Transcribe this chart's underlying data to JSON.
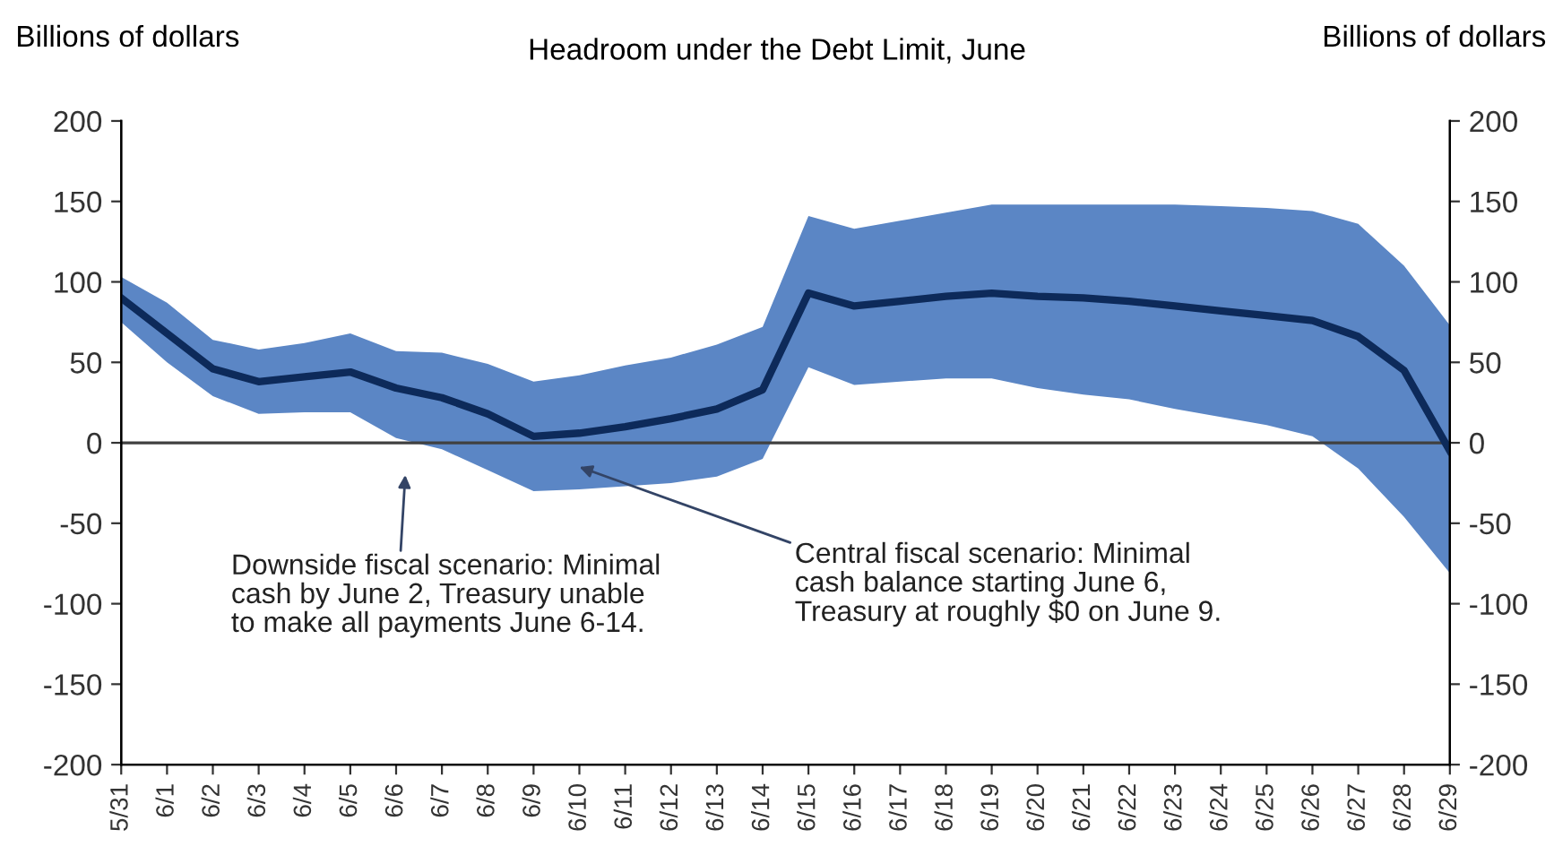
{
  "chart_data": {
    "type": "line",
    "title": "Headroom under the Debt Limit, June",
    "ylabel": "Billions of dollars",
    "y2label": "Billions of dollars",
    "categories": [
      "5/31",
      "6/1",
      "6/2",
      "6/3",
      "6/4",
      "6/5",
      "6/6",
      "6/7",
      "6/8",
      "6/9",
      "6/10",
      "6/11",
      "6/12",
      "6/13",
      "6/14",
      "6/15",
      "6/16",
      "6/17",
      "6/18",
      "6/19",
      "6/20",
      "6/21",
      "6/22",
      "6/23",
      "6/24",
      "6/25",
      "6/26",
      "6/27",
      "6/28",
      "6/29"
    ],
    "series": [
      {
        "color": "#0d2a5a",
        "values": [
          90,
          68,
          46,
          38,
          41,
          44,
          34,
          28,
          18,
          4,
          6,
          10,
          15,
          21,
          33,
          93,
          85,
          88,
          91,
          93,
          91,
          90,
          88,
          85,
          82,
          79,
          76,
          66,
          45,
          -5
        ],
        "lower": [
          75,
          50,
          29,
          18,
          19,
          19,
          3,
          -4,
          -17,
          -30,
          -29,
          -27,
          -25,
          -21,
          -10,
          47,
          36,
          38,
          40,
          40,
          34,
          30,
          27,
          21,
          16,
          11,
          4,
          -16,
          -46,
          -81
        ],
        "upper": [
          103,
          87,
          64,
          58,
          62,
          68,
          57,
          56,
          49,
          38,
          42,
          48,
          53,
          61,
          72,
          141,
          133,
          138,
          143,
          148,
          148,
          148,
          148,
          148,
          147,
          146,
          144,
          136,
          110,
          73
        ]
      }
    ],
    "ylim": [
      -200,
      200
    ],
    "yticks": [
      -200,
      -150,
      -100,
      -50,
      0,
      50,
      100,
      150,
      200
    ],
    "y2lim": [
      -200,
      200
    ],
    "y2ticks": [
      -200,
      -150,
      -100,
      -50,
      0,
      50,
      100,
      150,
      200
    ],
    "ref_lines": [
      {
        "axis": "y",
        "value": 0,
        "color": "#404040"
      }
    ],
    "grid": false,
    "legend": false,
    "line_style": "solid",
    "marker": "none",
    "annotations": [
      "Downside fiscal scenario: Minimal\ncash by June 2, Treasury unable\nto make all payments June 6-14.",
      "Central fiscal scenario: Minimal\ncash balance starting June 6,\nTreasury at roughly $0 on June 9."
    ]
  }
}
